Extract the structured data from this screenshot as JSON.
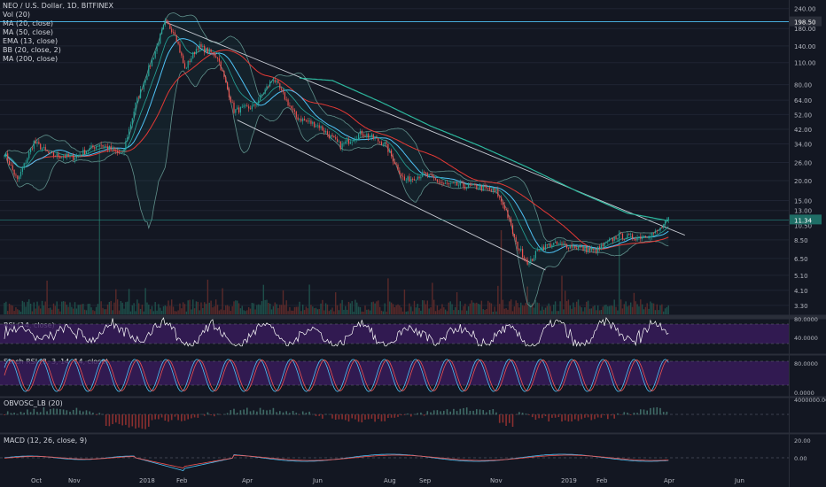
{
  "header": {
    "title": "NEO / U.S. Dollar, 1D, BITFINEX",
    "indicators": [
      "Vol (20)",
      "MA (20, close)",
      "MA (50, close)",
      "EMA (13, close)",
      "BB (20, close, 2)",
      "MA (200, close)"
    ]
  },
  "panes": {
    "rsi_label": "RSI (14, close)",
    "stoch_label": "Stoch RSI (3, 3, 14, 14, close)",
    "obv_label": "OBVOSC_LB (20)",
    "macd_label": "MACD (12, 26, close, 9)"
  },
  "colors": {
    "background": "#131722",
    "grid": "#1f2433",
    "up": "#26a69a",
    "down": "#ef5350",
    "ma200": "#2db89e",
    "ma50": "#e53935",
    "ma20": "#4fc3f7",
    "ema13": "#26a69a",
    "bb": "#5f8f8a",
    "channel": "#c8ccd4",
    "rsi_band": "#3a1c5e",
    "rsi_line": "#ffffff",
    "stoch_k": "#4fc3f7",
    "stoch_d": "#ef5350",
    "macd": "#4fc3f7",
    "signal": "#ef5350",
    "label_bg": "#2a2e39"
  },
  "chart_data": [
    {
      "type": "candlestick",
      "title": "NEO / U.S. Dollar, 1D, BITFINEX",
      "scale": "log",
      "y_ticks": [
        240,
        180,
        140,
        110,
        80,
        64,
        52,
        42,
        34,
        26,
        20,
        15,
        13,
        10.5,
        8.5,
        6.5,
        5.1,
        4.1,
        3.3
      ],
      "y_tick_labels": [
        "240.00",
        "180.00",
        "140.00",
        "110.00",
        "80.00",
        "64.00",
        "52.00",
        "42.00",
        "34.00",
        "26.00",
        "20.00",
        "15.00",
        "13.00",
        "10.50",
        "8.50",
        "6.50",
        "5.10",
        "4.10",
        "3.30"
      ],
      "ylim": [
        2.9,
        255
      ],
      "x_labels": [
        "Oct",
        "Nov",
        "2018",
        "Feb",
        "Apr",
        "Jun",
        "Aug",
        "Sep",
        "Nov",
        "2019",
        "Feb",
        "Apr",
        "Jun",
        "Aug"
      ],
      "price_keypoints": [
        {
          "x": 0,
          "y": 30
        },
        {
          "x": 8,
          "y": 20
        },
        {
          "x": 18,
          "y": 35
        },
        {
          "x": 28,
          "y": 29
        },
        {
          "x": 42,
          "y": 28
        },
        {
          "x": 58,
          "y": 34
        },
        {
          "x": 72,
          "y": 29
        },
        {
          "x": 80,
          "y": 60
        },
        {
          "x": 92,
          "y": 130
        },
        {
          "x": 98,
          "y": 197
        },
        {
          "x": 104,
          "y": 170
        },
        {
          "x": 110,
          "y": 100
        },
        {
          "x": 118,
          "y": 140
        },
        {
          "x": 130,
          "y": 120
        },
        {
          "x": 140,
          "y": 55
        },
        {
          "x": 152,
          "y": 58
        },
        {
          "x": 164,
          "y": 88
        },
        {
          "x": 178,
          "y": 50
        },
        {
          "x": 192,
          "y": 44
        },
        {
          "x": 205,
          "y": 33
        },
        {
          "x": 218,
          "y": 40
        },
        {
          "x": 232,
          "y": 34
        },
        {
          "x": 244,
          "y": 20
        },
        {
          "x": 256,
          "y": 22
        },
        {
          "x": 268,
          "y": 19
        },
        {
          "x": 282,
          "y": 18.5
        },
        {
          "x": 292,
          "y": 18
        },
        {
          "x": 300,
          "y": 17
        },
        {
          "x": 306,
          "y": 13
        },
        {
          "x": 312,
          "y": 8
        },
        {
          "x": 320,
          "y": 6
        },
        {
          "x": 326,
          "y": 7.5
        },
        {
          "x": 334,
          "y": 8
        },
        {
          "x": 346,
          "y": 7.8
        },
        {
          "x": 360,
          "y": 7.2
        },
        {
          "x": 374,
          "y": 9
        },
        {
          "x": 386,
          "y": 8.8
        },
        {
          "x": 398,
          "y": 9.5
        },
        {
          "x": 405,
          "y": 11.3
        }
      ],
      "ma200_keypoints": [
        {
          "x": 180,
          "y": 88
        },
        {
          "x": 200,
          "y": 85
        },
        {
          "x": 230,
          "y": 62
        },
        {
          "x": 260,
          "y": 44
        },
        {
          "x": 290,
          "y": 33
        },
        {
          "x": 320,
          "y": 24
        },
        {
          "x": 350,
          "y": 17
        },
        {
          "x": 380,
          "y": 12.5
        },
        {
          "x": 405,
          "y": 11.2
        }
      ],
      "channel_upper": [
        {
          "x": 97,
          "y": 200
        },
        {
          "x": 415,
          "y": 9.1
        }
      ],
      "channel_lower": [
        {
          "x": 142,
          "y": 48
        },
        {
          "x": 330,
          "y": 5.5
        }
      ],
      "last_price_label": "11.34",
      "ath_label": "198.50"
    },
    {
      "type": "line",
      "name": "RSI (14, close)",
      "ylim": [
        20,
        90
      ],
      "y_tick_labels": [
        "80.0000",
        "40.0000"
      ],
      "band": [
        30,
        70
      ]
    },
    {
      "type": "line",
      "name": "Stoch RSI (3, 3, 14, 14, close)",
      "ylim": [
        0,
        100
      ],
      "y_tick_labels": [
        "80.0000",
        "0.0000"
      ],
      "band": [
        20,
        80
      ]
    },
    {
      "type": "area",
      "name": "OBVOSC_LB (20)",
      "y_tick_labels": [
        "4000000.00"
      ]
    },
    {
      "type": "line",
      "name": "MACD (12, 26, close, 9)",
      "y_tick_labels": [
        "20.00",
        "0.00"
      ]
    }
  ]
}
